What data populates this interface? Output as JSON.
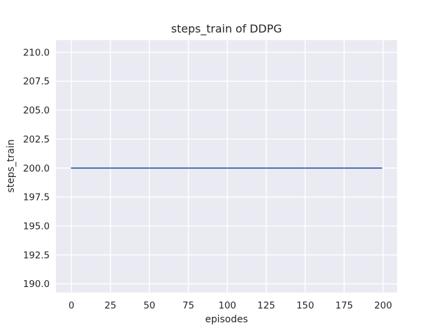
{
  "chart_data": {
    "type": "line",
    "title": "steps_train of DDPG",
    "xlabel": "episodes",
    "ylabel": "steps_train",
    "xlim": [
      -9.95,
      208.95
    ],
    "ylim": [
      189.25,
      211.05
    ],
    "xticks": [
      0,
      25,
      50,
      75,
      100,
      125,
      150,
      175,
      200
    ],
    "xtick_labels": [
      "0",
      "25",
      "50",
      "75",
      "100",
      "125",
      "150",
      "175",
      "200"
    ],
    "yticks": [
      190.0,
      192.5,
      195.0,
      197.5,
      200.0,
      202.5,
      205.0,
      207.5,
      210.0
    ],
    "ytick_labels": [
      "190.0",
      "192.5",
      "195.0",
      "197.5",
      "200.0",
      "202.5",
      "205.0",
      "207.5",
      "210.0"
    ],
    "grid": true,
    "legend": "none",
    "style": {
      "figure_background": "#ffffff",
      "plot_background": "#eaeaf2",
      "grid_color": "#ffffff",
      "text_color": "#262626",
      "line_color": "#4c72b0"
    },
    "series": [
      {
        "name": "steps_train",
        "color": "#4c72b0",
        "x": [
          0,
          199
        ],
        "y": [
          200,
          200
        ]
      }
    ]
  }
}
